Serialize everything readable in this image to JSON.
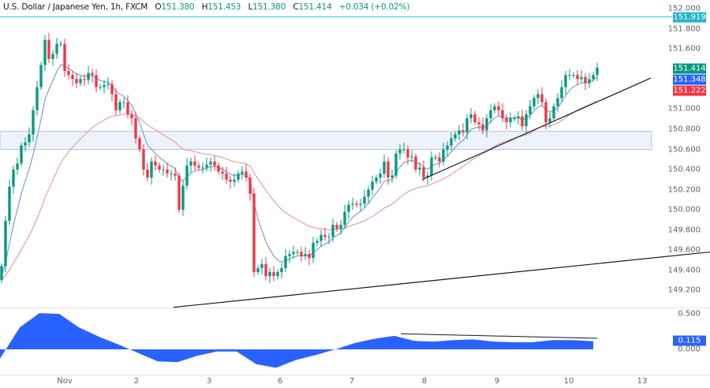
{
  "header": {
    "title": "U.S. Dollar / Japanese Yen, 1h, FXCM",
    "open_label": "O",
    "open": "151.380",
    "high_label": "H",
    "high": "151.453",
    "low_label": "L",
    "low": "151.380",
    "close_label": "C",
    "close": "151.414",
    "change": "+0.034 (+0.02%)"
  },
  "colors": {
    "up": "#089981",
    "down": "#f23645",
    "fast_ma": "#7e9fd6",
    "slow_ma": "#e3a0a0",
    "horizontal_line": "#22b5c8",
    "zone": "#eef3fb",
    "oscillator": "#2962ff"
  },
  "price_axis": {
    "ticks": [
      "152.000",
      "151.800",
      "151.600",
      "151.000",
      "150.800",
      "150.600",
      "150.400",
      "150.200",
      "150.000",
      "149.800",
      "149.600",
      "149.400",
      "149.200"
    ],
    "tags": [
      {
        "text": "151.919",
        "color": "#22b5c8",
        "value": 151.919
      },
      {
        "text": "151.414",
        "color": "#089981",
        "value": 151.414
      },
      {
        "text": "151.348",
        "color": "#2962ff",
        "value": 151.348
      },
      {
        "text": "151.222",
        "color": "#f23645",
        "value": 151.222
      }
    ]
  },
  "oscillator_axis": {
    "ticks": [
      "0.500",
      "0.000"
    ],
    "tag": {
      "text": "0.115",
      "color": "#2962ff"
    }
  },
  "time_axis": {
    "labels": [
      "Nov",
      "2",
      "3",
      "6",
      "7",
      "8",
      "9",
      "10",
      "13"
    ]
  },
  "chart_data": [
    {
      "type": "candlestick",
      "title": "U.S. Dollar / Japanese Yen, 1h, FXCM",
      "ylim": [
        149.1,
        152.05
      ],
      "first_open": 149.3,
      "closes": [
        149.44,
        149.89,
        150.23,
        150.4,
        150.46,
        150.64,
        150.67,
        150.75,
        150.99,
        151.22,
        151.44,
        151.69,
        151.5,
        151.55,
        151.65,
        151.65,
        151.38,
        151.34,
        151.3,
        151.26,
        151.3,
        151.29,
        151.36,
        151.34,
        151.22,
        151.22,
        151.24,
        151.25,
        151.15,
        150.99,
        151.07,
        151.07,
        150.95,
        150.91,
        150.71,
        150.6,
        150.4,
        150.32,
        150.48,
        150.44,
        150.4,
        150.4,
        150.36,
        150.36,
        150.34,
        150.0,
        150.24,
        150.44,
        150.48,
        150.44,
        150.42,
        150.42,
        150.45,
        150.48,
        150.44,
        150.38,
        150.36,
        150.3,
        150.28,
        150.3,
        150.36,
        150.38,
        150.32,
        150.16,
        149.38,
        149.42,
        149.46,
        149.34,
        149.38,
        149.34,
        149.38,
        149.42,
        149.54,
        149.56,
        149.58,
        149.58,
        149.54,
        149.56,
        149.52,
        149.67,
        149.69,
        149.75,
        149.73,
        149.73,
        149.85,
        149.81,
        149.85,
        149.98,
        150.05,
        150.06,
        150.05,
        150.06,
        150.13,
        150.2,
        150.28,
        150.32,
        150.36,
        150.48,
        150.32,
        150.34,
        150.56,
        150.6,
        150.6,
        150.52,
        150.53,
        150.4,
        150.42,
        150.32,
        150.34,
        150.52,
        150.52,
        150.48,
        150.6,
        150.64,
        150.71,
        150.75,
        150.79,
        150.77,
        150.91,
        150.95,
        150.87,
        150.85,
        150.79,
        150.91,
        150.99,
        151.03,
        150.99,
        150.91,
        150.87,
        150.91,
        150.91,
        150.93,
        150.83,
        150.95,
        151.03,
        151.11,
        151.15,
        151.07,
        150.87,
        150.91,
        151.03,
        151.11,
        151.22,
        151.34,
        151.34,
        151.34,
        151.3,
        151.32,
        151.26,
        151.3,
        151.34,
        151.414
      ],
      "horizontal_line": 151.919,
      "zone": [
        150.6,
        150.78
      ],
      "trendlines": [
        {
          "from_price": 150.3,
          "to_price": 151.31,
          "from_date": "8",
          "to_date": "13"
        },
        {
          "from_price": 149.03,
          "to_price": 149.58,
          "from_date": "2",
          "to_date": "13"
        }
      ],
      "xlabels": [
        "Nov",
        "2",
        "3",
        "6",
        "7",
        "8",
        "9",
        "10",
        "13"
      ]
    },
    {
      "type": "area",
      "ylim": [
        -0.33,
        0.6
      ],
      "values": [
        -0.13,
        0.31,
        0.51,
        0.5,
        0.31,
        0.18,
        0.07,
        -0.05,
        -0.17,
        -0.18,
        -0.09,
        -0.03,
        -0.03,
        -0.21,
        -0.26,
        -0.15,
        -0.08,
        0.0,
        0.09,
        0.15,
        0.19,
        0.12,
        0.11,
        0.13,
        0.14,
        0.11,
        0.1,
        0.1,
        0.13,
        0.13,
        0.115
      ],
      "trendline": [
        0.22,
        0.155
      ],
      "yticks": [
        "0.500",
        "0.000"
      ]
    }
  ]
}
